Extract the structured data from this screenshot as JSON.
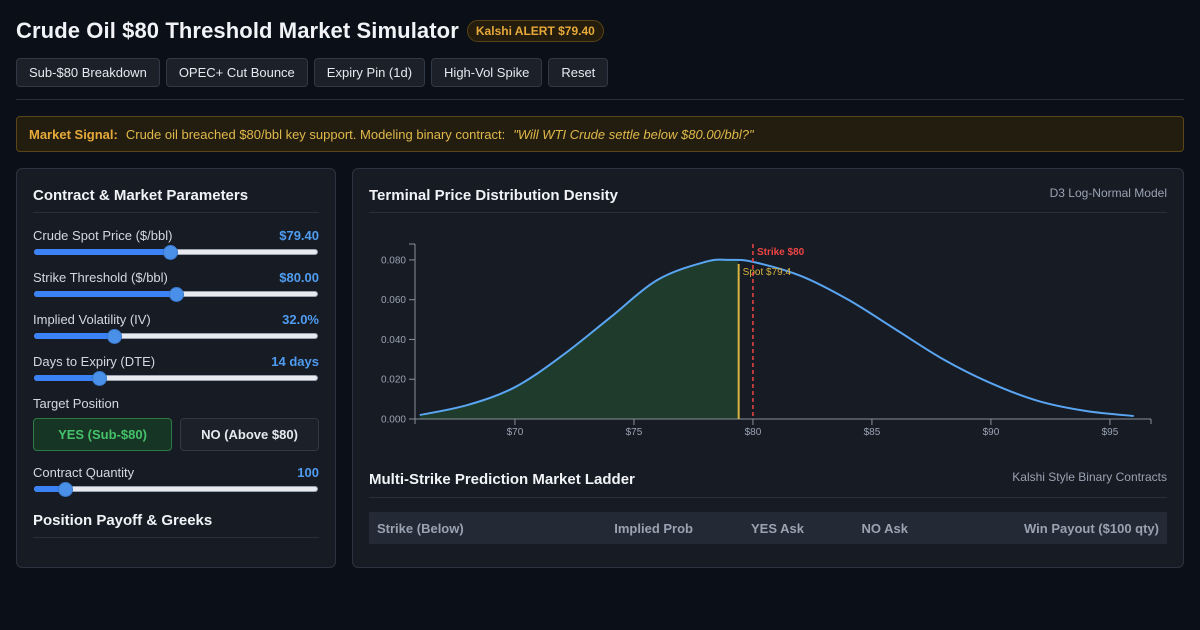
{
  "app": {
    "title": "Crude Oil $80 Threshold Market Simulator",
    "badge": "Kalshi ALERT $79.40"
  },
  "toolbar": {
    "buttons": [
      "Sub-$80 Breakdown",
      "OPEC+ Cut Bounce",
      "Expiry Pin (1d)",
      "High-Vol Spike",
      "Reset"
    ]
  },
  "signal": {
    "label": "Market Signal:",
    "text": "Crude oil breached $80/bbl key support. Modeling binary contract:",
    "question": "\"Will WTI Crude settle below $80.00/bbl?\""
  },
  "params": {
    "title": "Contract & Market Parameters",
    "spot": {
      "label": "Crude Spot Price ($/bbl)",
      "value": "$79.40",
      "fraction": 0.48
    },
    "strike": {
      "label": "Strike Threshold ($/bbl)",
      "value": "$80.00",
      "fraction": 0.5
    },
    "iv": {
      "label": "Implied Volatility (IV)",
      "value": "32.0%",
      "fraction": 0.28
    },
    "dte": {
      "label": "Days to Expiry (DTE)",
      "value": "14 days",
      "fraction": 0.23
    },
    "target_label": "Target Position",
    "yes_label": "YES (Sub-$80)",
    "no_label": "NO (Above $80)",
    "qty": {
      "label": "Contract Quantity",
      "value": "100",
      "fraction": 0.11
    },
    "payoff_title": "Position Payoff & Greeks"
  },
  "chart_panel": {
    "title": "Terminal Price Distribution Density",
    "subtitle": "D3 Log-Normal Model"
  },
  "ladder": {
    "title": "Multi-Strike Prediction Market Ladder",
    "subtitle": "Kalshi Style Binary Contracts",
    "columns": [
      "Strike (Below)",
      "Implied Prob",
      "YES Ask",
      "NO Ask",
      "Win Payout ($100 qty)"
    ]
  },
  "colors": {
    "accent": "#4f9cf0",
    "curve": "#5aa5f2",
    "fill": "#1e3b2c",
    "spot": "#d9b441",
    "strike": "#ef4444",
    "yes": "#45c26a",
    "alert": "#e6a93a"
  },
  "chart_data": {
    "type": "area",
    "title": "",
    "xlabel": "",
    "ylabel": "",
    "xlim": [
      65.8,
      96.6
    ],
    "ylim": [
      0,
      0.088
    ],
    "x_ticks": [
      "$70",
      "$75",
      "$80",
      "$85",
      "$90",
      "$95"
    ],
    "x_tick_values": [
      70,
      75,
      80,
      85,
      90,
      95
    ],
    "y_ticks": [
      "0.000",
      "0.020",
      "0.040",
      "0.060",
      "0.080"
    ],
    "y_tick_values": [
      0,
      0.02,
      0.04,
      0.06,
      0.08
    ],
    "series": [
      {
        "name": "",
        "x": [
          66,
          68,
          70,
          72,
          74,
          76,
          78,
          79,
          80,
          82,
          84,
          86,
          88,
          90,
          92,
          94,
          96
        ],
        "y": [
          0.002,
          0.007,
          0.016,
          0.032,
          0.051,
          0.07,
          0.079,
          0.08,
          0.079,
          0.072,
          0.06,
          0.045,
          0.03,
          0.018,
          0.009,
          0.004,
          0.0015
        ]
      }
    ],
    "shaded_below": 79.4,
    "markers": [
      {
        "label": "Strike $80",
        "x": 80
      },
      {
        "label": "Spot $79.4",
        "x": 79.4
      }
    ]
  }
}
